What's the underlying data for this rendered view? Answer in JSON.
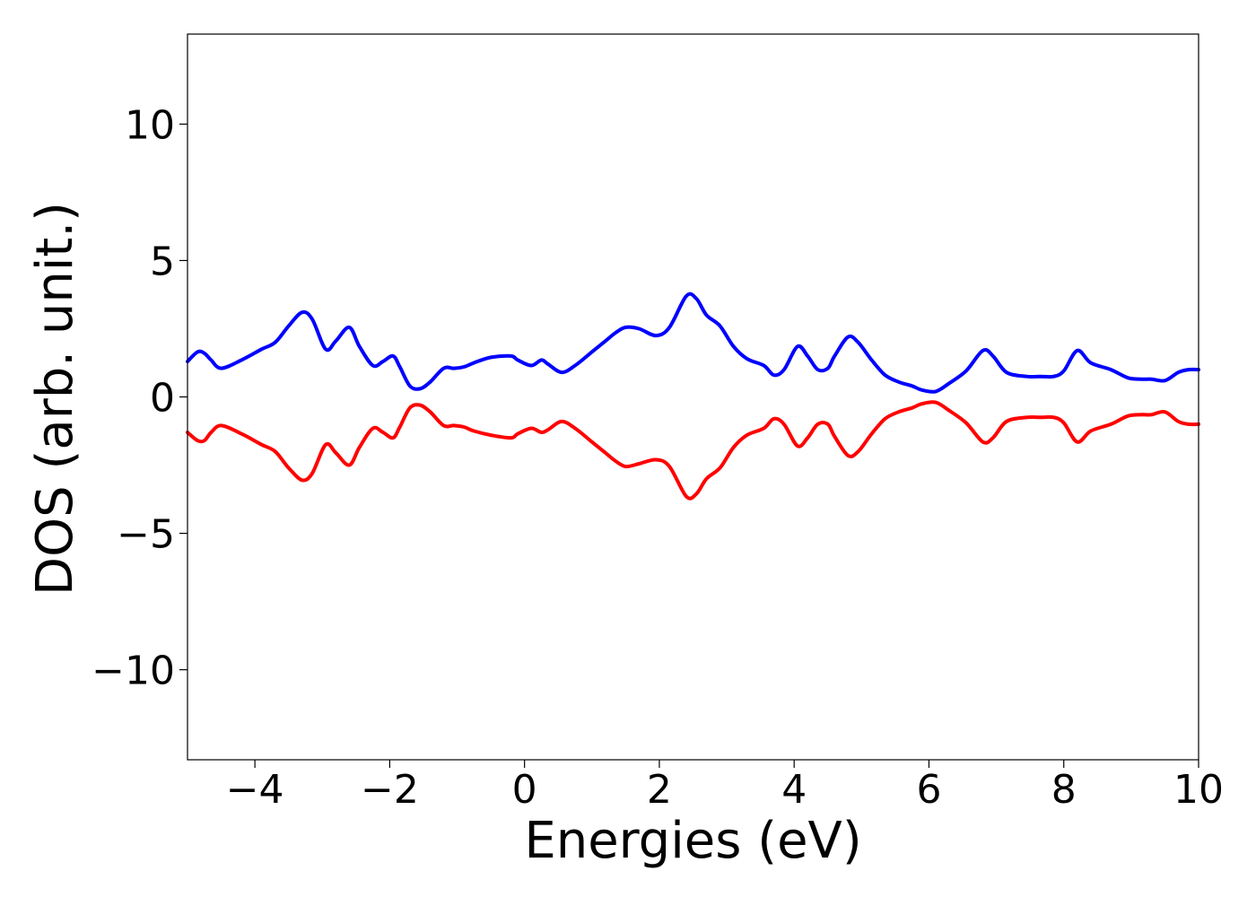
{
  "chart_data": {
    "type": "line",
    "title": "",
    "xlabel": "Energies (eV)",
    "ylabel": "DOS (arb. unit.)",
    "xlim": [
      -5,
      10
    ],
    "ylim": [
      -13.3,
      13.3
    ],
    "grid": false,
    "legend": "none",
    "x_ticks": [
      -4,
      -2,
      0,
      2,
      4,
      6,
      8,
      10
    ],
    "x_tick_labels": [
      "−4",
      "−2",
      "0",
      "2",
      "4",
      "6",
      "8",
      "10"
    ],
    "y_ticks": [
      10,
      5,
      0,
      -5,
      -10
    ],
    "y_tick_labels": [
      "10",
      "5",
      "0",
      "−5",
      "−10"
    ],
    "series": [
      {
        "color": "#0000ff",
        "x": [
          -5.0,
          -4.85,
          -4.75,
          -4.65,
          -4.5,
          -4.2,
          -3.9,
          -3.7,
          -3.5,
          -3.3,
          -3.15,
          -2.95,
          -2.8,
          -2.6,
          -2.45,
          -2.25,
          -2.1,
          -1.95,
          -1.85,
          -1.7,
          -1.55,
          -1.4,
          -1.2,
          -1.05,
          -0.9,
          -0.75,
          -0.5,
          -0.2,
          -0.1,
          0.1,
          0.25,
          0.35,
          0.55,
          0.75,
          1.0,
          1.2,
          1.35,
          1.5,
          1.7,
          1.95,
          2.15,
          2.4,
          2.55,
          2.7,
          2.9,
          3.1,
          3.3,
          3.55,
          3.7,
          3.85,
          4.05,
          4.2,
          4.35,
          4.5,
          4.6,
          4.8,
          4.95,
          5.15,
          5.35,
          5.55,
          5.75,
          5.9,
          6.1,
          6.3,
          6.55,
          6.8,
          6.95,
          7.15,
          7.45,
          7.65,
          7.85,
          8.0,
          8.2,
          8.4,
          8.7,
          8.95,
          9.15,
          9.3,
          9.5,
          9.7,
          9.85,
          10.0
        ],
        "y": [
          1.3,
          1.65,
          1.6,
          1.35,
          1.05,
          1.35,
          1.75,
          2.0,
          2.6,
          3.1,
          2.85,
          1.75,
          2.05,
          2.55,
          1.85,
          1.15,
          1.3,
          1.5,
          1.1,
          0.4,
          0.3,
          0.55,
          1.05,
          1.05,
          1.1,
          1.25,
          1.45,
          1.5,
          1.35,
          1.15,
          1.35,
          1.2,
          0.9,
          1.15,
          1.65,
          2.05,
          2.35,
          2.55,
          2.5,
          2.25,
          2.55,
          3.7,
          3.6,
          3.0,
          2.6,
          1.85,
          1.4,
          1.15,
          0.8,
          1.0,
          1.85,
          1.5,
          1.0,
          1.05,
          1.5,
          2.2,
          2.0,
          1.35,
          0.8,
          0.55,
          0.4,
          0.25,
          0.2,
          0.5,
          0.95,
          1.7,
          1.5,
          0.9,
          0.75,
          0.75,
          0.75,
          0.95,
          1.7,
          1.25,
          1.0,
          0.7,
          0.65,
          0.65,
          0.6,
          0.9,
          1.0,
          1.0
        ]
      },
      {
        "color": "#ff0000",
        "x": [
          -5.0,
          -4.85,
          -4.75,
          -4.65,
          -4.5,
          -4.2,
          -3.9,
          -3.7,
          -3.5,
          -3.3,
          -3.15,
          -2.95,
          -2.8,
          -2.6,
          -2.45,
          -2.25,
          -2.1,
          -1.95,
          -1.85,
          -1.7,
          -1.55,
          -1.4,
          -1.2,
          -1.05,
          -0.9,
          -0.75,
          -0.5,
          -0.2,
          -0.1,
          0.1,
          0.25,
          0.35,
          0.55,
          0.75,
          1.0,
          1.2,
          1.35,
          1.5,
          1.7,
          1.95,
          2.15,
          2.4,
          2.55,
          2.7,
          2.9,
          3.1,
          3.3,
          3.55,
          3.7,
          3.85,
          4.05,
          4.2,
          4.35,
          4.5,
          4.6,
          4.8,
          4.95,
          5.15,
          5.35,
          5.55,
          5.75,
          5.9,
          6.1,
          6.3,
          6.55,
          6.8,
          6.95,
          7.15,
          7.45,
          7.65,
          7.85,
          8.0,
          8.2,
          8.4,
          8.7,
          8.95,
          9.15,
          9.3,
          9.5,
          9.7,
          9.85,
          10.0
        ],
        "y": [
          -1.3,
          -1.6,
          -1.6,
          -1.3,
          -1.05,
          -1.35,
          -1.75,
          -2.0,
          -2.6,
          -3.05,
          -2.8,
          -1.75,
          -2.05,
          -2.5,
          -1.85,
          -1.15,
          -1.3,
          -1.5,
          -1.1,
          -0.4,
          -0.3,
          -0.55,
          -1.05,
          -1.05,
          -1.1,
          -1.25,
          -1.4,
          -1.5,
          -1.35,
          -1.15,
          -1.3,
          -1.2,
          -0.9,
          -1.15,
          -1.65,
          -2.05,
          -2.35,
          -2.55,
          -2.45,
          -2.3,
          -2.55,
          -3.65,
          -3.55,
          -3.0,
          -2.6,
          -1.85,
          -1.4,
          -1.15,
          -0.8,
          -1.0,
          -1.8,
          -1.5,
          -1.0,
          -1.0,
          -1.45,
          -2.15,
          -2.0,
          -1.35,
          -0.8,
          -0.55,
          -0.4,
          -0.25,
          -0.2,
          -0.5,
          -0.95,
          -1.65,
          -1.5,
          -0.9,
          -0.75,
          -0.75,
          -0.75,
          -0.95,
          -1.65,
          -1.25,
          -1.0,
          -0.7,
          -0.65,
          -0.65,
          -0.55,
          -0.9,
          -1.0,
          -1.0
        ]
      }
    ]
  }
}
